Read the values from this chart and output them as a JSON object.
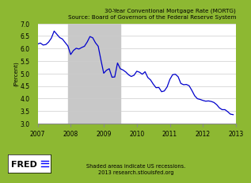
{
  "title": "30-Year Conventional Mortgage Rate (MORTG)\nSource: Board of Governors of the Federal Reserve System",
  "ylabel": "(Percent)",
  "xlabel_note": "Shaded areas indicate US recessions.\n2013 research.stlouisfed.org",
  "fred_label": "FRED",
  "background_color": "#8db832",
  "plot_bg_color": "#ffffff",
  "line_color": "#0000cc",
  "recession_color": "#c8c8c8",
  "recession_start": 2007.917,
  "recession_end": 2009.5,
  "ylim": [
    3.0,
    7.0
  ],
  "xlim_start": 2007.0,
  "xlim_end": 2013.0,
  "xticks": [
    2007,
    2008,
    2009,
    2010,
    2011,
    2012,
    2013
  ],
  "yticks": [
    3.0,
    3.5,
    4.0,
    4.5,
    5.0,
    5.5,
    6.0,
    6.5,
    7.0
  ],
  "title_fontsize": 5.2,
  "tick_fontsize": 5.5,
  "ylabel_fontsize": 5.0,
  "note_fontsize": 4.8,
  "fred_fontsize": 8,
  "data": [
    [
      2007.0,
      6.18
    ],
    [
      2007.083,
      6.22
    ],
    [
      2007.167,
      6.14
    ],
    [
      2007.25,
      6.16
    ],
    [
      2007.333,
      6.26
    ],
    [
      2007.417,
      6.42
    ],
    [
      2007.5,
      6.7
    ],
    [
      2007.583,
      6.57
    ],
    [
      2007.667,
      6.44
    ],
    [
      2007.75,
      6.38
    ],
    [
      2007.833,
      6.24
    ],
    [
      2007.917,
      6.1
    ],
    [
      2008.0,
      5.76
    ],
    [
      2008.083,
      5.92
    ],
    [
      2008.167,
      6.01
    ],
    [
      2008.25,
      5.98
    ],
    [
      2008.333,
      6.04
    ],
    [
      2008.417,
      6.09
    ],
    [
      2008.5,
      6.26
    ],
    [
      2008.583,
      6.48
    ],
    [
      2008.667,
      6.43
    ],
    [
      2008.75,
      6.23
    ],
    [
      2008.833,
      6.09
    ],
    [
      2008.917,
      5.53
    ],
    [
      2009.0,
      5.01
    ],
    [
      2009.083,
      5.13
    ],
    [
      2009.167,
      5.19
    ],
    [
      2009.25,
      4.85
    ],
    [
      2009.333,
      4.86
    ],
    [
      2009.417,
      5.42
    ],
    [
      2009.5,
      5.19
    ],
    [
      2009.583,
      5.14
    ],
    [
      2009.667,
      5.06
    ],
    [
      2009.75,
      4.95
    ],
    [
      2009.833,
      4.88
    ],
    [
      2009.917,
      4.93
    ],
    [
      2010.0,
      5.09
    ],
    [
      2010.083,
      5.05
    ],
    [
      2010.167,
      4.97
    ],
    [
      2010.25,
      5.07
    ],
    [
      2010.333,
      4.84
    ],
    [
      2010.417,
      4.74
    ],
    [
      2010.5,
      4.57
    ],
    [
      2010.583,
      4.43
    ],
    [
      2010.667,
      4.44
    ],
    [
      2010.75,
      4.27
    ],
    [
      2010.833,
      4.3
    ],
    [
      2010.917,
      4.46
    ],
    [
      2011.0,
      4.76
    ],
    [
      2011.083,
      4.95
    ],
    [
      2011.167,
      4.97
    ],
    [
      2011.25,
      4.87
    ],
    [
      2011.333,
      4.6
    ],
    [
      2011.417,
      4.55
    ],
    [
      2011.5,
      4.56
    ],
    [
      2011.583,
      4.51
    ],
    [
      2011.667,
      4.32
    ],
    [
      2011.75,
      4.11
    ],
    [
      2011.833,
      3.99
    ],
    [
      2011.917,
      3.96
    ],
    [
      2012.0,
      3.92
    ],
    [
      2012.083,
      3.89
    ],
    [
      2012.167,
      3.9
    ],
    [
      2012.25,
      3.88
    ],
    [
      2012.333,
      3.84
    ],
    [
      2012.417,
      3.75
    ],
    [
      2012.5,
      3.62
    ],
    [
      2012.583,
      3.55
    ],
    [
      2012.667,
      3.55
    ],
    [
      2012.75,
      3.47
    ],
    [
      2012.833,
      3.37
    ],
    [
      2012.917,
      3.35
    ]
  ]
}
